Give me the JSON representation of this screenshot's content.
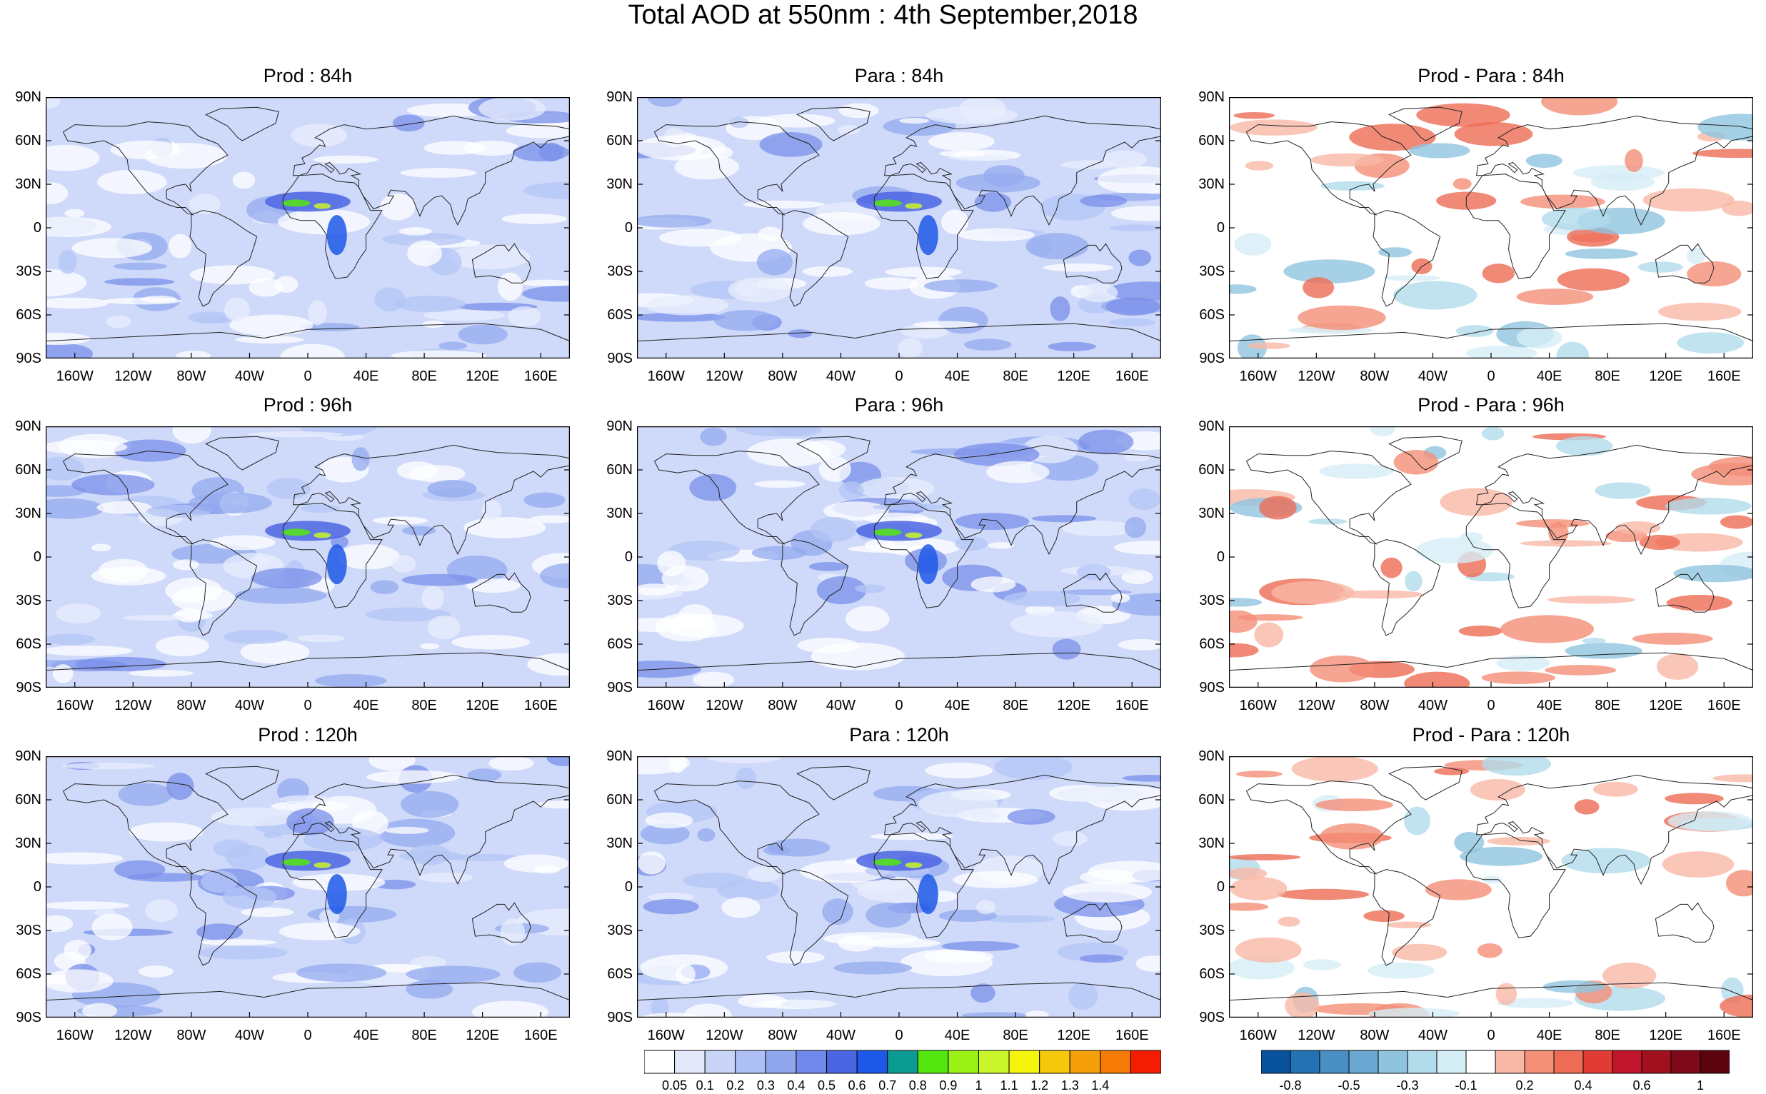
{
  "title": "Total AOD at 550nm : 4th September,2018",
  "lat_labels": [
    "90N",
    "60N",
    "30N",
    "0",
    "30S",
    "60S",
    "90S"
  ],
  "lon_labels": [
    "160W",
    "120W",
    "80W",
    "40W",
    "0",
    "40E",
    "80E",
    "120E",
    "160E"
  ],
  "panels": [
    {
      "title": "Prod : 84h",
      "kind": "aod"
    },
    {
      "title": "Para : 84h",
      "kind": "aod"
    },
    {
      "title": "Prod - Para : 84h",
      "kind": "diff"
    },
    {
      "title": "Prod : 96h",
      "kind": "aod"
    },
    {
      "title": "Para : 96h",
      "kind": "aod"
    },
    {
      "title": "Prod - Para : 96h",
      "kind": "diff"
    },
    {
      "title": "Prod : 120h",
      "kind": "aod"
    },
    {
      "title": "Para : 120h",
      "kind": "aod"
    },
    {
      "title": "Prod - Para : 120h",
      "kind": "diff"
    }
  ],
  "aod_colorbar": {
    "labels": [
      "0.05",
      "0.1",
      "0.2",
      "0.3",
      "0.4",
      "0.5",
      "0.6",
      "0.7",
      "0.8",
      "0.9",
      "1",
      "1.1",
      "1.2",
      "1.3",
      "1.4"
    ],
    "colors": [
      "#ffffff",
      "#e3e9fb",
      "#c9d5f8",
      "#adbff4",
      "#90a7ef",
      "#7089ea",
      "#4c65e3",
      "#1d58e8",
      "#0c9b92",
      "#53e60f",
      "#9bf014",
      "#c9f52a",
      "#f5f50c",
      "#f5c80a",
      "#f5a008",
      "#f57a06",
      "#f51c04"
    ]
  },
  "diff_colorbar": {
    "labels": [
      "-0.8",
      "-0.5",
      "-0.3",
      "-0.1",
      "0.2",
      "0.4",
      "0.6",
      "1"
    ],
    "colors": [
      "#08519c",
      "#2471b3",
      "#4a8fc4",
      "#6aa8d2",
      "#8fc4df",
      "#b2dbeb",
      "#d6eef6",
      "#ffffff",
      "#f9b8a6",
      "#f48f78",
      "#ee6b55",
      "#e03c35",
      "#c0152a",
      "#a0101f",
      "#7e0918",
      "#5b0410"
    ]
  }
}
